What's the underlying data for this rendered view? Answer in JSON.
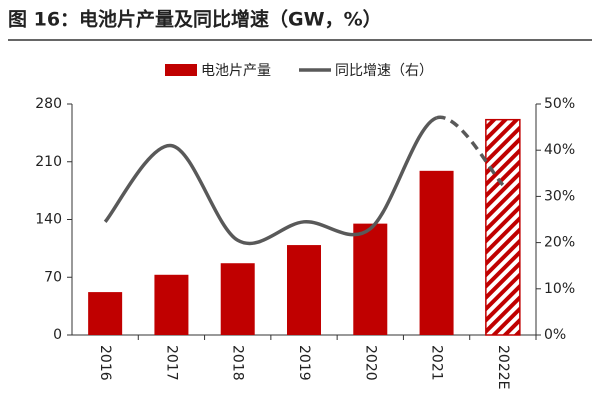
{
  "chart_data": {
    "type": "bar-line",
    "title": "图 16：电池片产量及同比增速（GW，%）",
    "categories": [
      "2016",
      "2017",
      "2018",
      "2019",
      "2020",
      "2021",
      "2022E"
    ],
    "series": [
      {
        "name": "电池片产量",
        "type": "bar",
        "color": "#c00000",
        "values": [
          52,
          73,
          87,
          109,
          135,
          199,
          261
        ],
        "hatched_last": true
      },
      {
        "name": "同比增速（右）",
        "type": "line",
        "axis": "y2",
        "color": "#595959",
        "values": [
          24.5,
          41,
          20.5,
          24.5,
          23,
          47,
          32.5
        ],
        "dashed_last_segment": true
      }
    ],
    "ylim": [
      0,
      280
    ],
    "yticks": [
      0,
      70,
      140,
      210,
      280
    ],
    "y2lim": [
      0,
      50
    ],
    "y2ticks": [
      {
        "value": 0,
        "label": "0%"
      },
      {
        "value": 10,
        "label": "10%"
      },
      {
        "value": 20,
        "label": "20%"
      },
      {
        "value": 30,
        "label": "30%"
      },
      {
        "value": 40,
        "label": "40%"
      },
      {
        "value": 50,
        "label": "50%"
      }
    ],
    "grid": false
  }
}
